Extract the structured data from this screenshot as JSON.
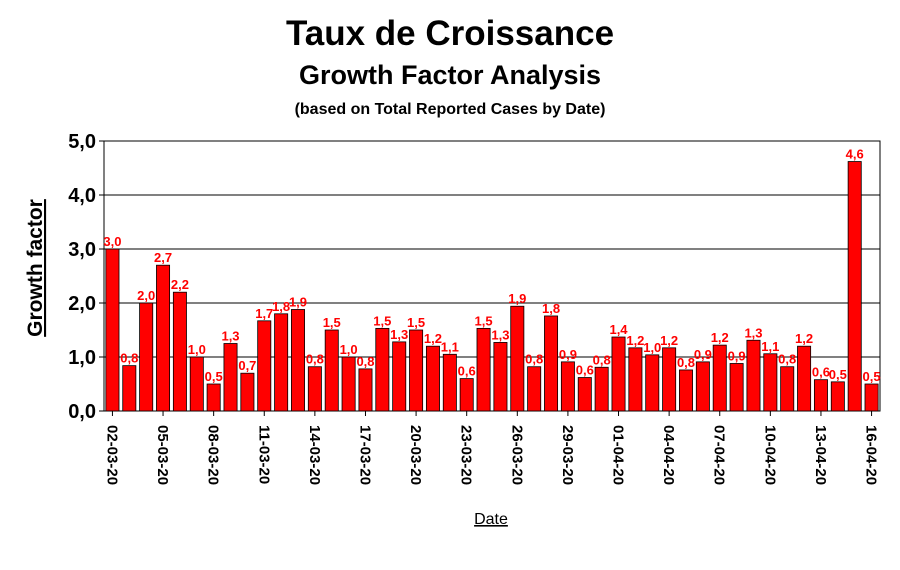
{
  "chart_data": {
    "type": "bar",
    "title": "Taux de Croissance",
    "subtitle": "Growth Factor Analysis",
    "note": "(based on Total Reported Cases by Date)",
    "xlabel": "Date",
    "ylabel": "Growth factor",
    "ylim": [
      0,
      5
    ],
    "yticks": [
      "0,0",
      "1,0",
      "2,0",
      "3,0",
      "4,0",
      "5,0"
    ],
    "grid": true,
    "bar_color": "#ff0000",
    "label_color": "#ff0000",
    "tick_labels": [
      "02-03-20",
      "05-03-20",
      "08-03-20",
      "11-03-20",
      "14-03-20",
      "17-03-20",
      "20-03-20",
      "23-03-20",
      "26-03-20",
      "29-03-20",
      "01-04-20",
      "04-04-20",
      "07-04-20",
      "10-04-20",
      "13-04-20",
      "16-04-20"
    ],
    "categories": [
      "02-03-20",
      "03-03-20",
      "04-03-20",
      "05-03-20",
      "06-03-20",
      "07-03-20",
      "08-03-20",
      "09-03-20",
      "10-03-20",
      "11-03-20",
      "12-03-20",
      "13-03-20",
      "14-03-20",
      "15-03-20",
      "16-03-20",
      "17-03-20",
      "18-03-20",
      "19-03-20",
      "20-03-20",
      "21-03-20",
      "22-03-20",
      "23-03-20",
      "24-03-20",
      "25-03-20",
      "26-03-20",
      "27-03-20",
      "28-03-20",
      "29-03-20",
      "30-03-20",
      "31-03-20",
      "01-04-20",
      "02-04-20",
      "03-04-20",
      "04-04-20",
      "05-04-20",
      "06-04-20",
      "07-04-20",
      "08-04-20",
      "09-04-20",
      "10-04-20",
      "11-04-20",
      "12-04-20",
      "13-04-20",
      "14-04-20",
      "15-04-20",
      "16-04-20"
    ],
    "values": [
      3.0,
      0.84,
      2.0,
      2.7,
      2.2,
      1.0,
      0.5,
      1.25,
      0.7,
      1.67,
      1.8,
      1.88,
      0.82,
      1.5,
      1.0,
      0.78,
      1.53,
      1.28,
      1.5,
      1.2,
      1.05,
      0.6,
      1.53,
      1.27,
      1.94,
      0.82,
      1.76,
      0.91,
      0.62,
      0.81,
      1.37,
      1.17,
      1.04,
      1.17,
      0.76,
      0.91,
      1.22,
      0.88,
      1.31,
      1.06,
      0.82,
      1.2,
      0.58,
      0.54,
      4.62,
      0.5
    ],
    "data_labels": [
      "3,0",
      "0,8",
      "2,0",
      "2,7",
      "2,2",
      "1,0",
      "0,5",
      "1,3",
      "0,7",
      "1,7",
      "1,8",
      "1,9",
      "0,8",
      "1,5",
      "1,0",
      "0,8",
      "1,5",
      "1,3",
      "1,5",
      "1,2",
      "1,1",
      "0,6",
      "1,5",
      "1,3",
      "1,9",
      "0,8",
      "1,8",
      "0,9",
      "0,6",
      "0,8",
      "1,4",
      "1,2",
      "1,0",
      "1,2",
      "0,8",
      "0,9",
      "1,2",
      "0,9",
      "1,3",
      "1,1",
      "0,8",
      "1,2",
      "0,6",
      "0,5",
      "4,6",
      "0,5"
    ]
  }
}
